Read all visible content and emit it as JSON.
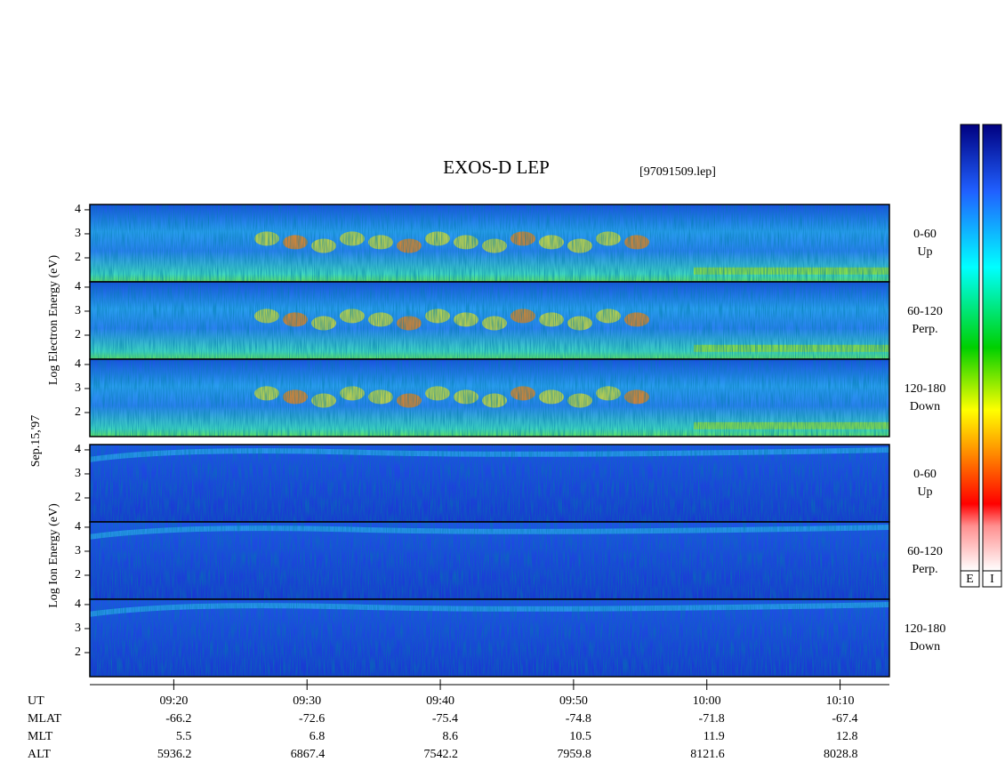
{
  "chart_data": {
    "type": "spectrogram",
    "title": "EXOS-D LEP",
    "file": "[97091509.lep]",
    "date": "Sep.15,'97",
    "groups": [
      {
        "label": "Log Electron Energy (eV)",
        "colorbar": "E"
      },
      {
        "label": "Log Ion Energy (eV)",
        "colorbar": "I"
      }
    ],
    "panels": [
      {
        "group": 0,
        "angle": "0-60",
        "direction": "Up"
      },
      {
        "group": 0,
        "angle": "60-120",
        "direction": "Perp."
      },
      {
        "group": 0,
        "angle": "120-180",
        "direction": "Down"
      },
      {
        "group": 1,
        "angle": "0-60",
        "direction": "Up"
      },
      {
        "group": 1,
        "angle": "60-120",
        "direction": "Perp."
      },
      {
        "group": 1,
        "angle": "120-180",
        "direction": "Down"
      }
    ],
    "ylim": [
      1,
      4.22
    ],
    "yticks": [
      2,
      3,
      4
    ],
    "xlim": [
      13.7,
      73.7
    ],
    "xticks": [
      {
        "value": 20,
        "label": "09:20"
      },
      {
        "value": 30,
        "label": "09:30"
      },
      {
        "value": 40,
        "label": "09:40"
      },
      {
        "value": 50,
        "label": "09:50"
      },
      {
        "value": 60,
        "label": "10:00"
      },
      {
        "value": 70,
        "label": "10:10"
      }
    ],
    "ephemeris": {
      "labels": [
        "UT",
        "MLAT",
        "MLT",
        "ALT"
      ],
      "rows": [
        [
          "-66.2",
          "-72.6",
          "-75.4",
          "-74.8",
          "-71.8",
          "-67.4"
        ],
        [
          "5.5",
          "6.8",
          "8.6",
          "10.5",
          "11.9",
          "12.8"
        ],
        [
          "5936.2",
          "6867.4",
          "7542.2",
          "7959.8",
          "8121.6",
          "8028.8"
        ]
      ]
    }
  }
}
